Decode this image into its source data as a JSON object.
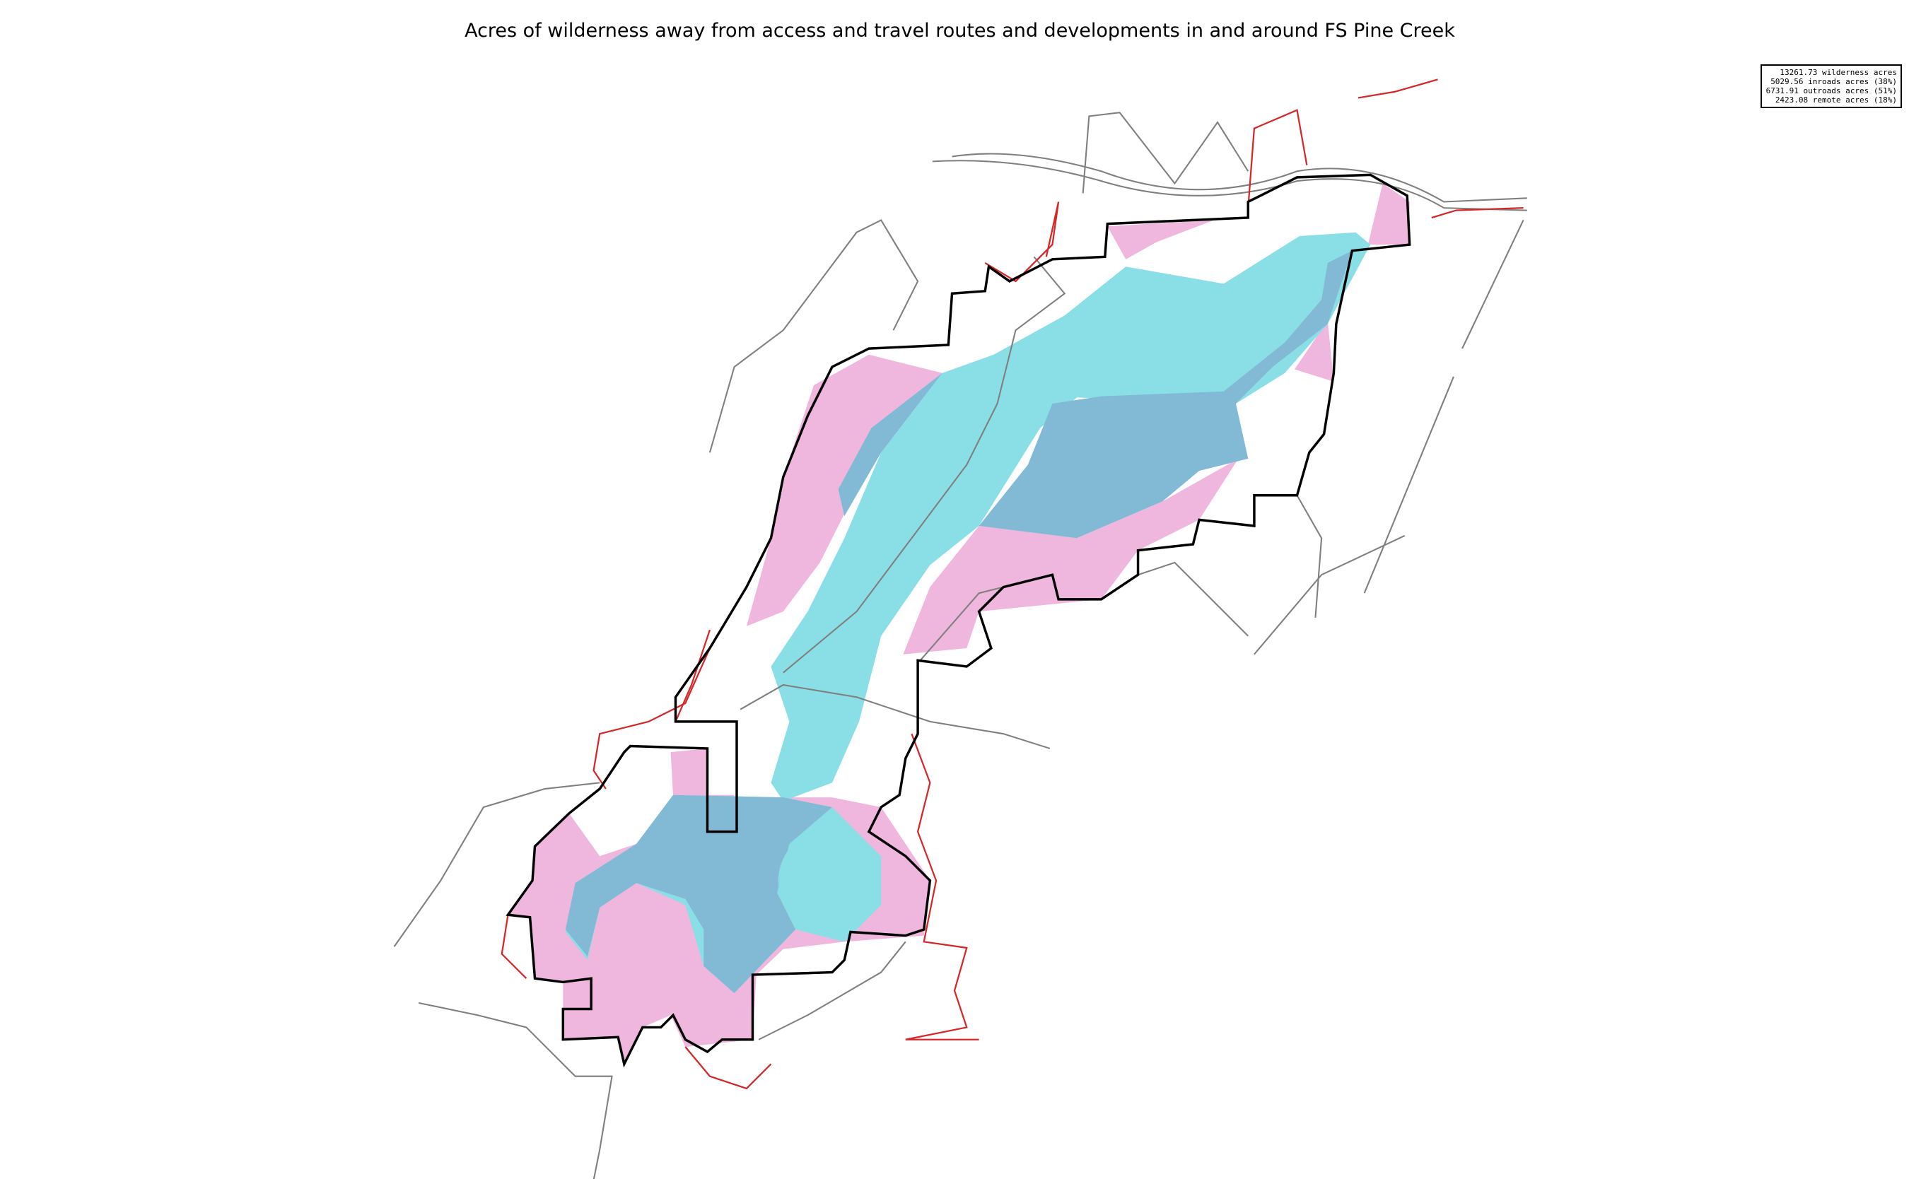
{
  "title": "Acres of wilderness away from access and travel routes and developments in and around FS Pine Creek",
  "legend": {
    "lines": [
      "13261.73 wilderness acres",
      "5029.56 inroads acres (38%)",
      "6731.91 outroads acres (51%)",
      "2423.08 remote acres (18%)"
    ]
  },
  "stats": {
    "wilderness_acres": 13261.73,
    "inroads_acres": 5029.56,
    "inroads_pct": 38,
    "outroads_acres": 6731.91,
    "outroads_pct": 51,
    "remote_acres": 2423.08,
    "remote_pct": 18
  },
  "colors": {
    "inroads": "#efb6de",
    "outroads": "#8adfe6",
    "remote": "#82bad6",
    "boundary": "#000000",
    "roads": "#7f7f7f",
    "trails": "#d62728"
  }
}
